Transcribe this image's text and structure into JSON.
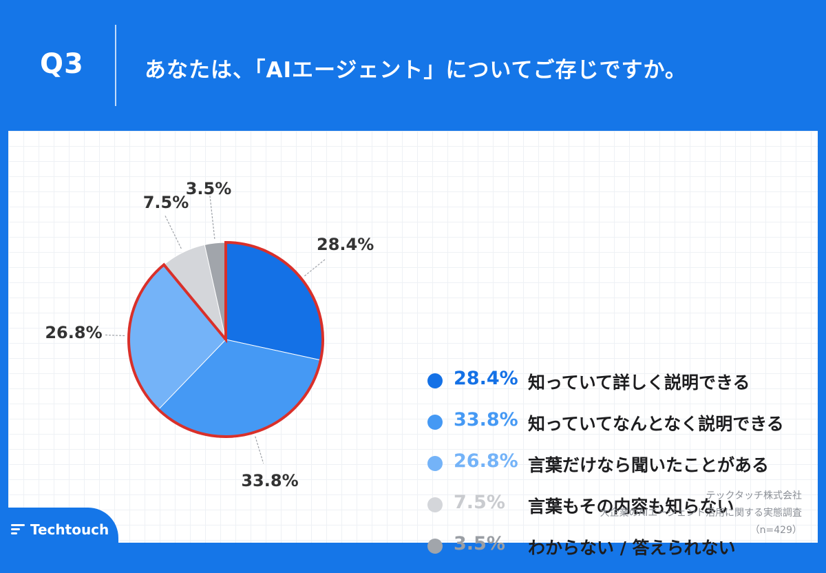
{
  "header": {
    "question_number": "Q3",
    "question_text": "あなたは、「AIエージェント」についてご存じですか。"
  },
  "chart_data": {
    "type": "pie",
    "slices": [
      {
        "label": "知っていて詳しく説明できる",
        "value": 28.4,
        "value_text": "28.4%",
        "color": "#1471e6",
        "legend_text_color": "#1471e6"
      },
      {
        "label": "知っていてなんとなく説明できる",
        "value": 33.8,
        "value_text": "33.8%",
        "color": "#4599f4",
        "legend_text_color": "#4599f4"
      },
      {
        "label": "言葉だけなら聞いたことがある",
        "value": 26.8,
        "value_text": "26.8%",
        "color": "#74b3f8",
        "legend_text_color": "#74b3f8"
      },
      {
        "label": "言葉もその内容も知らない",
        "value": 7.5,
        "value_text": "7.5%",
        "color": "#d4d6da",
        "legend_text_color": "#c9cbcf"
      },
      {
        "label": "わからない / 答えられない",
        "value": 3.5,
        "value_text": "3.5%",
        "color": "#a1a5ab",
        "legend_text_color": "#9a9ea4"
      }
    ],
    "highlight": {
      "slices": [
        0,
        1,
        2
      ],
      "color": "#d9302a"
    },
    "start_angle": "12 o'clock",
    "direction": "clockwise"
  },
  "footer": {
    "company": "テックタッチ株式会社",
    "survey": "大企業のAIエージェント活用に関する実態調査",
    "sample": "（n=429）"
  },
  "brand": {
    "name": "Techtouch",
    "color": "#1576e8"
  }
}
